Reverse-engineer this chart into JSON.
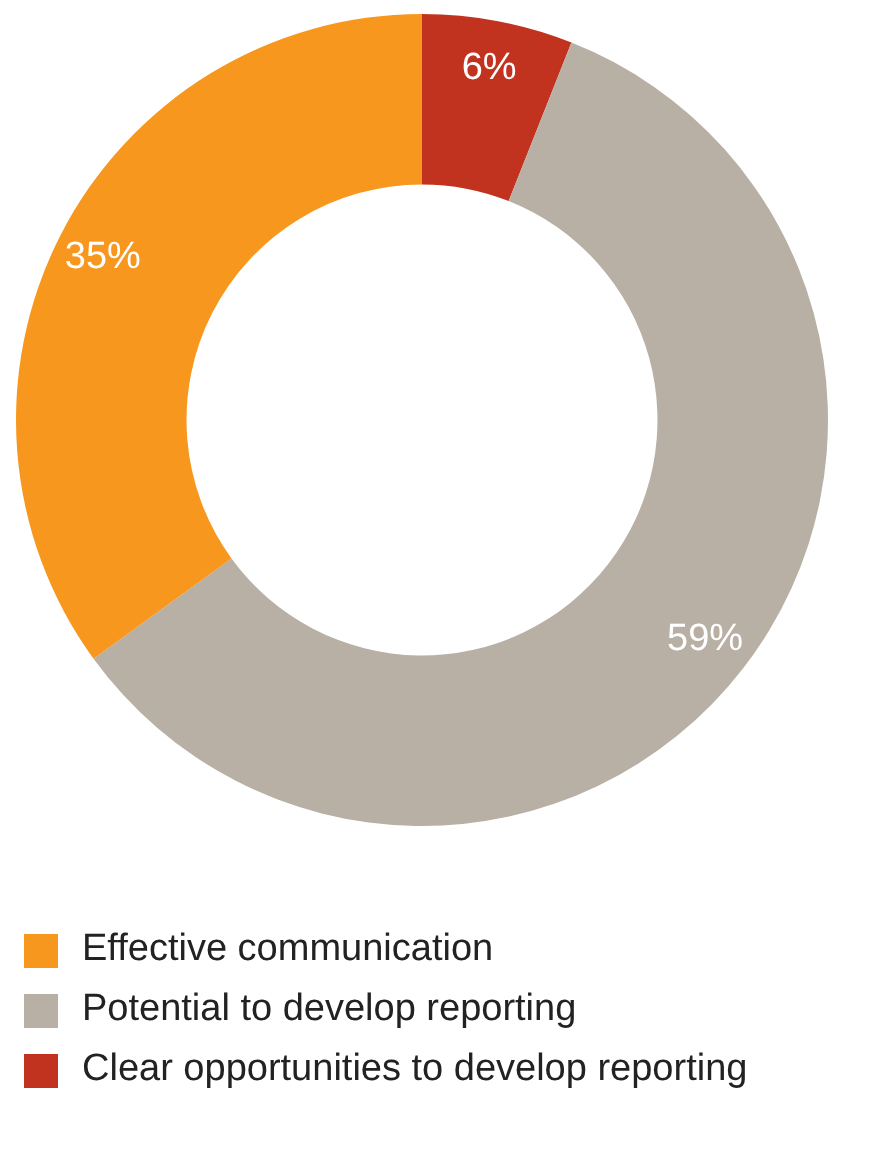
{
  "chart_data": {
    "type": "donut",
    "categories": [
      "Effective communication",
      "Potential to develop reporting",
      "Clear opportunities to develop reporting"
    ],
    "values": [
      35,
      59,
      6
    ],
    "colors": [
      "#f7971e",
      "#b8afa5",
      "#c1321f"
    ],
    "value_labels": [
      "35%",
      "59%",
      "6%"
    ],
    "legend": "bottom"
  }
}
